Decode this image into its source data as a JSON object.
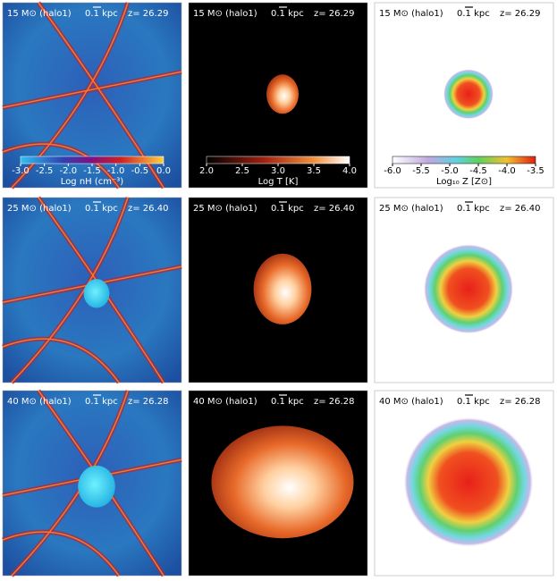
{
  "rows": [
    {
      "label": "15 M⊙ (halo1)",
      "scale": "0.1 kpc",
      "redshift": "z= 26.29"
    },
    {
      "label": "25 M⊙ (halo1)",
      "scale": "0.1 kpc",
      "redshift": "z= 26.40"
    },
    {
      "label": "40 M⊙ (halo1)",
      "scale": "0.1 kpc",
      "redshift": "z= 26.28"
    }
  ],
  "colorbars": [
    {
      "ticks": [
        "-3.0",
        "-2.5",
        "-2.0",
        "-1.5",
        "-1.0",
        "-0.5",
        "0.0"
      ],
      "label": "Log nH (cm⁻³)"
    },
    {
      "ticks": [
        "2.0",
        "2.5",
        "3.0",
        "3.5",
        "4.0"
      ],
      "label": "Log T [K]"
    },
    {
      "ticks": [
        "-6.0",
        "-5.5",
        "-5.0",
        "-4.5",
        "-4.0",
        "-3.5"
      ],
      "label": "Log₁₀ Z [Z⊙]"
    }
  ]
}
